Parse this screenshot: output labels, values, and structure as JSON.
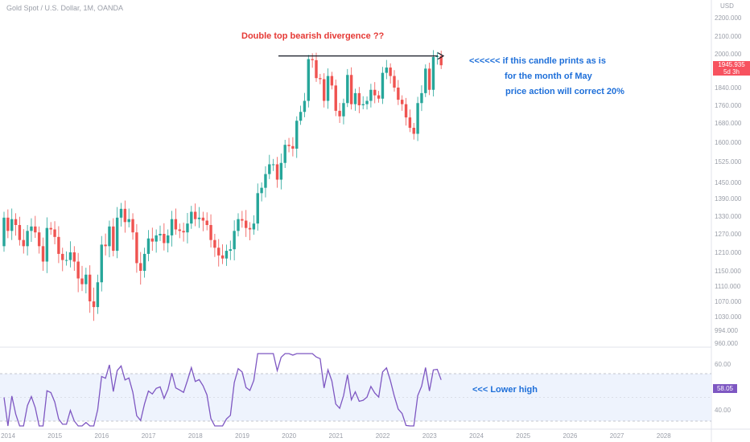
{
  "header": {
    "symbol_title": "Gold Spot / U.S. Dollar, 1M, OANDA"
  },
  "annotations": {
    "divergence": "Double top bearish divergence ??",
    "line1": "<<<<<< if this candle prints as is",
    "line2": "for the month of May",
    "line3": "price action will correct 20%",
    "rsi_note": "<<< Lower high"
  },
  "price_tag": {
    "value": "1945.935",
    "countdown": "5d 3h"
  },
  "rsi_tag": {
    "value": "58.05"
  },
  "colors": {
    "up": "#26a69a",
    "down": "#ef5350",
    "rsi": "#7e57c2",
    "rsi_band": "#eef3fd",
    "annotation_blue": "#1e6fd9",
    "annotation_red": "#e53935"
  },
  "chart_data": {
    "type": "candlestick",
    "price_axis": {
      "currency": "USD",
      "ticks": [
        2200,
        2100,
        2000,
        1840,
        1760,
        1680,
        1600,
        1525,
        1450,
        1390,
        1330,
        1270,
        1210,
        1150,
        1110,
        1070,
        1030,
        994,
        960
      ]
    },
    "time_axis": {
      "ticks": [
        "2014",
        "2015",
        "2016",
        "2017",
        "2018",
        "2019",
        "2020",
        "2021",
        "2022",
        "2023",
        "2024",
        "2025",
        "2026",
        "2027",
        "2028"
      ]
    },
    "monthly_close": [
      1325,
      1280,
      1320,
      1300,
      1250,
      1230,
      1280,
      1295,
      1275,
      1230,
      1180,
      1290,
      1285,
      1260,
      1205,
      1185,
      1185,
      1210,
      1180,
      1130,
      1115,
      1140,
      1070,
      1055,
      1120,
      1235,
      1230,
      1295,
      1215,
      1325,
      1355,
      1310,
      1320,
      1275,
      1175,
      1150,
      1205,
      1255,
      1245,
      1265,
      1270,
      1240,
      1265,
      1320,
      1285,
      1280,
      1275,
      1305,
      1345,
      1320,
      1325,
      1315,
      1300,
      1250,
      1225,
      1200,
      1190,
      1215,
      1220,
      1280,
      1320,
      1315,
      1290,
      1285,
      1305,
      1410,
      1430,
      1480,
      1515,
      1515,
      1460,
      1520,
      1590,
      1585,
      1575,
      1690,
      1730,
      1780,
      1975,
      1970,
      1885,
      1880,
      1780,
      1895,
      1850,
      1735,
      1710,
      1770,
      1900,
      1765,
      1815,
      1760,
      1765,
      1780,
      1830,
      1805,
      1790,
      1910,
      1935,
      1895,
      1840,
      1785,
      1765,
      1705,
      1660,
      1635,
      1770,
      1815,
      1930,
      1830,
      1985,
      1990,
      1945.935
    ],
    "rsi": {
      "value_ticks": [
        60,
        40
      ],
      "bands": [
        70,
        30
      ],
      "last": 58.05
    },
    "marks": {
      "divergence_arrow_level": 1990
    }
  }
}
